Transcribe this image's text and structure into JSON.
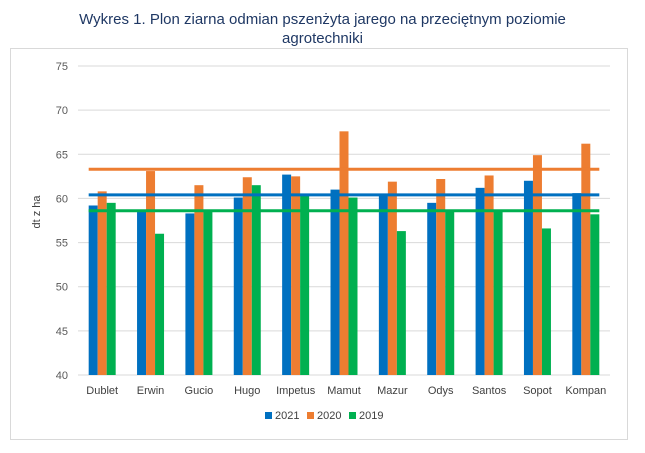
{
  "chart_data": {
    "type": "bar",
    "title_line1": "Wykres 1. Plon ziarna odmian pszenżyta jarego na przeciętnym poziomie",
    "title_line2": "agrotechniki",
    "ylabel": "dt z ha",
    "xlabel": "",
    "ylim": [
      40,
      75
    ],
    "yticks": [
      40,
      45,
      50,
      55,
      60,
      65,
      70,
      75
    ],
    "grid": true,
    "legend_position": "bottom",
    "categories": [
      "Dublet",
      "Erwin",
      "Gucio",
      "Hugo",
      "Impetus",
      "Mamut",
      "Mazur",
      "Odys",
      "Santos",
      "Sopot",
      "Kompan"
    ],
    "series": [
      {
        "name": "2021",
        "color": "#0070c0",
        "values": [
          59.2,
          58.6,
          58.3,
          60.1,
          62.7,
          61.0,
          60.3,
          59.5,
          61.2,
          62.0,
          60.6
        ],
        "mean": 60.4
      },
      {
        "name": "2020",
        "color": "#ed7d31",
        "values": [
          60.8,
          63.1,
          61.5,
          62.4,
          62.5,
          67.6,
          61.9,
          62.2,
          62.6,
          64.9,
          66.2
        ],
        "mean": 63.3
      },
      {
        "name": "2019",
        "color": "#00b050",
        "values": [
          59.5,
          56.0,
          58.6,
          61.5,
          60.4,
          60.1,
          56.3,
          58.6,
          58.7,
          56.6,
          58.2
        ],
        "mean": 58.6
      }
    ]
  }
}
